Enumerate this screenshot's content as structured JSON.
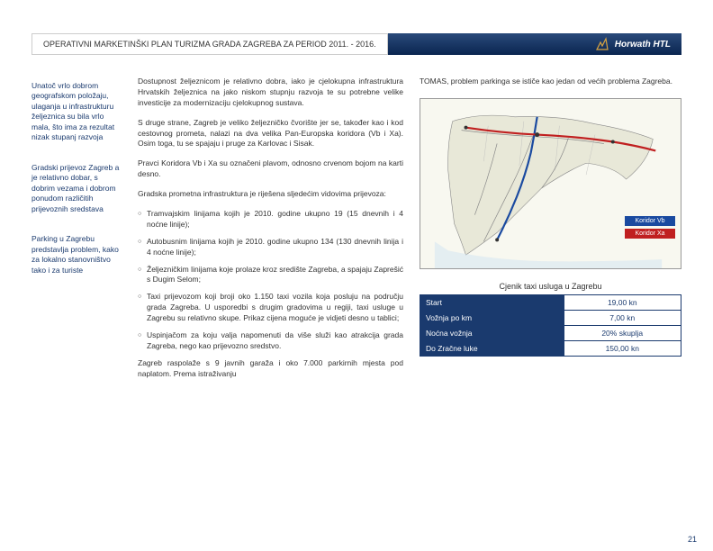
{
  "header": {
    "title": "OPERATIVNI MARKETINŠKI PLAN TURIZMA GRADA ZAGREBA ZA PERIOD 2011. - 2016.",
    "logo_text": "Horwath HTL"
  },
  "sidebar": {
    "block1": "Unatoč vrlo dobrom geografskom položaju, ulaganja u infrastrukturu željeznica su bila vrlo mala, što ima za rezultat nizak stupanj razvoja",
    "block2": "Gradski prijevoz Zagreb a je relativno dobar, s dobrim vezama i dobrom ponudom različitih prijevoznih sredstava",
    "block3": "Parking u Zagrebu predstavlja problem, kako za lokalno stanovništvo tako i za turiste"
  },
  "main": {
    "p1": "Dostupnost željeznicom je relativno dobra, iako je cjelokupna infrastruktura Hrvatskih željeznica na jako niskom stupnju razvoja te su potrebne velike investicije za modernizaciju cjelokupnog sustava.",
    "p2": "S druge strane, Zagreb je veliko željezničko čvorište jer se, također kao i kod cestovnog prometa, nalazi na dva velika Pan-Europska koridora (Vb i Xa). Osim toga, tu se spajaju i pruge za Karlovac i Sisak.",
    "p3": "Pravci Koridora Vb i Xa su označeni plavom, odnosno crvenom bojom na karti desno.",
    "intro": "Gradska prometna infrastruktura je riješena sljedećim vidovima prijevoza:",
    "b1": "Tramvajskim linijama kojih je 2010. godine ukupno 19 (15 dnevnih i 4 noćne linije);",
    "b2": "Autobusnim linijama kojih je 2010. godine ukupno 134 (130 dnevnih linija i 4 noćne linije);",
    "b3": "Željezničkim linijama koje prolaze kroz središte Zagreba, a spajaju Zaprešić s Dugim Selom;",
    "b4": "Taxi prijevozom koji broji oko 1.150 taxi vozila koja posluju na području grada Zagreba. U usporedbi s drugim gradovima u regiji, taxi usluge u Zagrebu su relativno skupe. Prikaz cijena moguće je vidjeti desno u tablici;",
    "b5": "Uspinjačom za koju valja napomenuti da više služi kao atrakcija grada Zagreba, nego kao prijevozno sredstvo.",
    "p4": "Zagreb raspolaže s 9 javnih garaža i oko 7.000 parkirnih mjesta pod naplatom. Prema istraživanju"
  },
  "right": {
    "text": "TOMAS, problem parkinga se ističe kao jedan od većih problema Zagreba.",
    "legend": {
      "vb": {
        "label": "Koridor Vb",
        "color": "#1a4aa0"
      },
      "xa": {
        "label": "Koridor Xa",
        "color": "#c02020"
      }
    },
    "table": {
      "caption": "Cjenik taxi usluga u Zagrebu",
      "rows": [
        {
          "label": "Start",
          "value": "19,00 kn"
        },
        {
          "label": "Vožnja po km",
          "value": "7,00 kn"
        },
        {
          "label": "Noćna vožnja",
          "value": "20% skuplja"
        },
        {
          "label": "Do Zračne luke",
          "value": "150,00 kn"
        }
      ]
    }
  },
  "page_number": "21"
}
